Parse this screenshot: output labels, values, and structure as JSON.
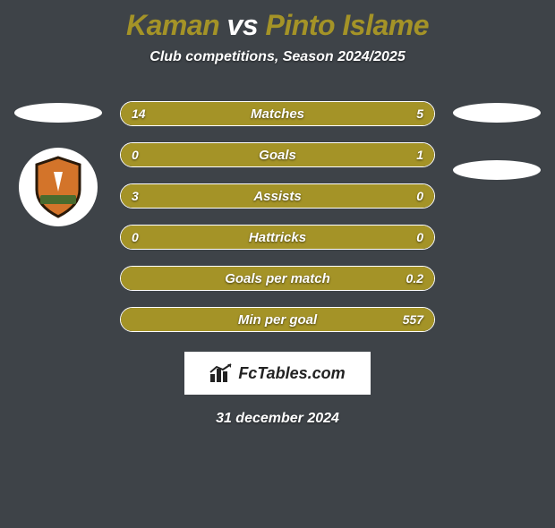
{
  "title": {
    "player1": "Kaman",
    "vs": " vs ",
    "player2": "Pinto Islame",
    "player1_color": "#a49327",
    "vs_color": "#ffffff",
    "player2_color": "#a49327"
  },
  "subtitle": "Club competitions, Season 2024/2025",
  "bar_color": "#a49327",
  "bar_bg": "#3e4348",
  "rows": [
    {
      "label": "Matches",
      "left_val": "14",
      "right_val": "5",
      "left_pct": 70,
      "right_pct": 30
    },
    {
      "label": "Goals",
      "left_val": "0",
      "right_val": "1",
      "left_pct": 18,
      "right_pct": 82
    },
    {
      "label": "Assists",
      "left_val": "3",
      "right_val": "0",
      "left_pct": 84,
      "right_pct": 16
    },
    {
      "label": "Hattricks",
      "left_val": "0",
      "right_val": "0",
      "left_pct": 50,
      "right_pct": 50
    },
    {
      "label": "Goals per match",
      "left_val": "",
      "right_val": "0.2",
      "left_pct": 0,
      "right_pct": 100
    },
    {
      "label": "Min per goal",
      "left_val": "",
      "right_val": "557",
      "left_pct": 0,
      "right_pct": 100
    }
  ],
  "footer_brand": "FcTables.com",
  "footer_date": "31 december 2024",
  "club_badge": {
    "shield_fill": "#d3742a",
    "shield_border": "#2a1a0a",
    "banner_fill": "#4a6b2e"
  }
}
